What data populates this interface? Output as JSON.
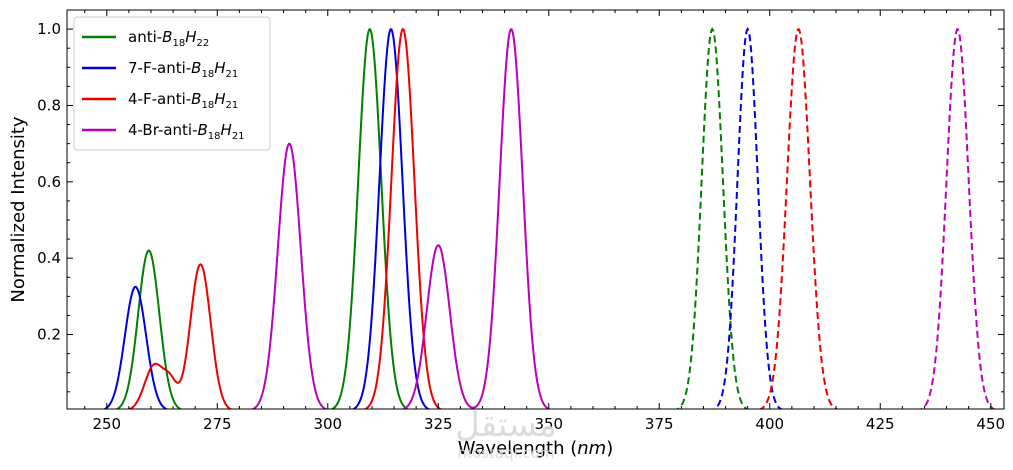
{
  "chart_data": {
    "type": "line",
    "xlabel_main": "Wavelength (",
    "xlabel_unit": "nm",
    "xlabel_close": ")",
    "ylabel": "Normalized Intensity",
    "xlim": [
      241,
      453
    ],
    "ylim": [
      0.005,
      1.05
    ],
    "xticks": [
      250,
      275,
      300,
      325,
      350,
      375,
      400,
      425,
      450
    ],
    "yticks": [
      0.2,
      0.4,
      0.6,
      0.8,
      1.0
    ],
    "grid": false,
    "legend_position": "top-left",
    "series": [
      {
        "name_prefix": "anti-",
        "name_b": "B",
        "name_b_sub": "18",
        "name_h": "H",
        "name_h_sub": "22",
        "color": "#008000",
        "absorption_peaks": [
          {
            "center": 259.5,
            "amplitude": 0.42,
            "sigma": 2.4
          },
          {
            "center": 309.5,
            "amplitude": 1.0,
            "sigma": 2.6
          }
        ],
        "absorption_range": [
          246,
          320
        ],
        "emission_peaks": [
          {
            "center": 387.0,
            "amplitude": 1.0,
            "sigma": 2.4
          }
        ],
        "emission_range": [
          378,
          396
        ]
      },
      {
        "name_prefix": "7-F-anti-",
        "name_b": "B",
        "name_b_sub": "18",
        "name_h": "H",
        "name_h_sub": "21",
        "color": "#0000dd",
        "absorption_peaks": [
          {
            "center": 256.5,
            "amplitude": 0.325,
            "sigma": 2.4
          },
          {
            "center": 314.3,
            "amplitude": 1.0,
            "sigma": 2.6
          }
        ],
        "absorption_range": [
          244,
          325
        ],
        "emission_peaks": [
          {
            "center": 395.0,
            "amplitude": 1.0,
            "sigma": 2.3
          }
        ],
        "emission_range": [
          386,
          404
        ]
      },
      {
        "name_prefix": "4-F-anti-",
        "name_b": "B",
        "name_b_sub": "18",
        "name_h": "H",
        "name_h_sub": "21",
        "color": "#ee0000",
        "absorption_peaks": [
          {
            "center": 260.8,
            "amplitude": 0.12,
            "sigma": 2.2
          },
          {
            "center": 264.5,
            "amplitude": 0.06,
            "sigma": 1.5
          },
          {
            "center": 271.2,
            "amplitude": 0.384,
            "sigma": 2.3
          },
          {
            "center": 317.0,
            "amplitude": 1.0,
            "sigma": 2.6
          }
        ],
        "absorption_range": [
          252,
          328
        ],
        "emission_peaks": [
          {
            "center": 406.5,
            "amplitude": 1.0,
            "sigma": 2.6
          }
        ],
        "emission_range": [
          395,
          416
        ]
      },
      {
        "name_prefix": "4-Br-anti-",
        "name_b": "B",
        "name_b_sub": "18",
        "name_h": "H",
        "name_h_sub": "21",
        "color": "#bb00bb",
        "absorption_peaks": [
          {
            "center": 291.3,
            "amplitude": 0.7,
            "sigma": 2.6
          },
          {
            "center": 325.0,
            "amplitude": 0.434,
            "sigma": 2.6
          },
          {
            "center": 341.5,
            "amplitude": 1.0,
            "sigma": 2.6
          }
        ],
        "absorption_range": [
          280,
          352
        ],
        "emission_peaks": [
          {
            "center": 442.5,
            "amplitude": 1.0,
            "sigma": 2.5
          }
        ],
        "emission_range": [
          433,
          451
        ]
      }
    ]
  },
  "watermark": {
    "main": "مستقل",
    "sub": "mostaql.com"
  }
}
